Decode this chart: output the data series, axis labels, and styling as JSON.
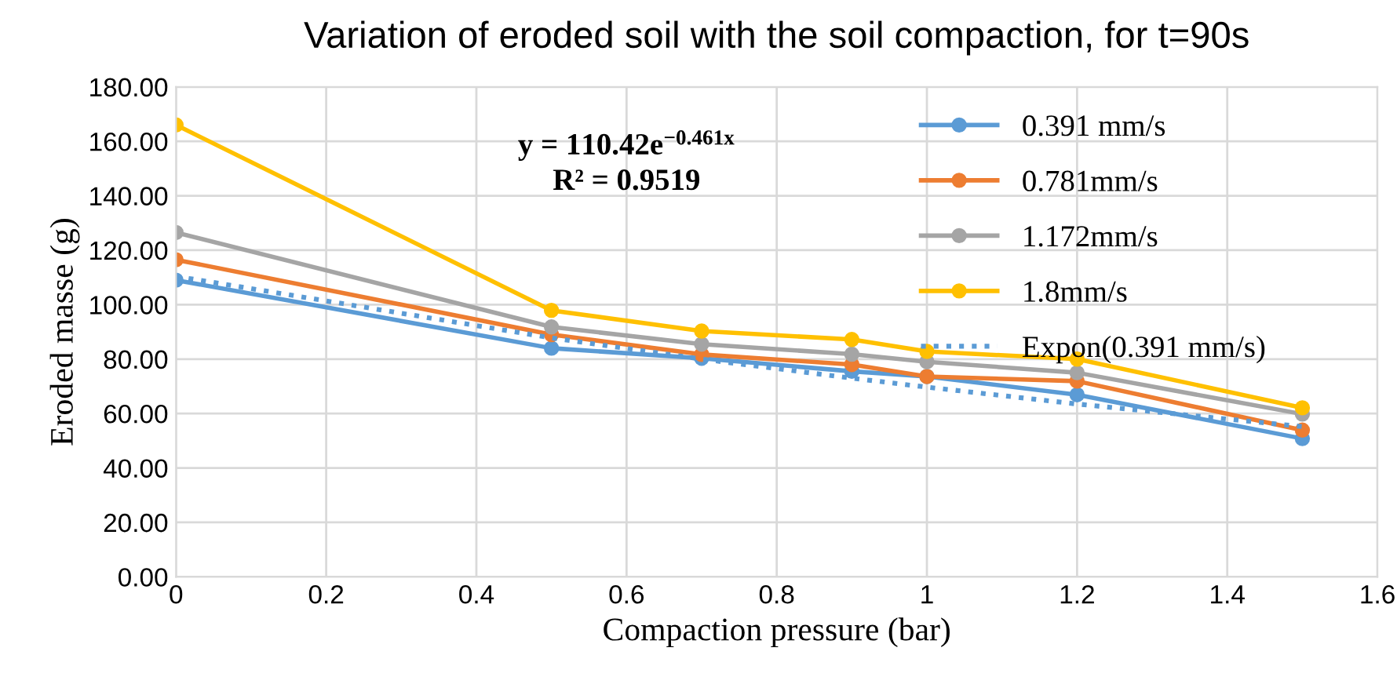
{
  "chart_data": {
    "type": "line",
    "title": "Variation of eroded soil with the soil compaction, for t=90s",
    "xlabel": "Compaction pressure (bar)",
    "ylabel": "Eroded masse (g)",
    "x": [
      0,
      0.5,
      0.7,
      0.9,
      1,
      1.2,
      1.5
    ],
    "series": [
      {
        "name": "0.391 mm/s",
        "color": "#5b9bd5",
        "values": [
          109,
          84,
          80.3,
          75.5,
          73.6,
          66.9,
          50.8
        ]
      },
      {
        "name": "0.781mm/s",
        "color": "#ed7d31",
        "values": [
          116.5,
          89,
          81.7,
          78,
          73.6,
          71.9,
          53.9
        ]
      },
      {
        "name": "1.172mm/s",
        "color": "#a5a5a5",
        "values": [
          126.5,
          91.8,
          85.5,
          81.8,
          79,
          75,
          59.8
        ]
      },
      {
        "name": "1.8mm/s",
        "color": "#ffc000",
        "values": [
          166,
          97.9,
          90.3,
          87.2,
          82.8,
          80,
          62.1
        ]
      },
      {
        "name": "Expon(0.391 mm/s)",
        "color": "#5b9bd5",
        "marker": "none",
        "line_style": "dotted",
        "values": [
          110.4,
          87.8,
          80.0,
          73.0,
          69.7,
          63.5,
          55.2
        ]
      }
    ],
    "annotations": [
      "y = 110.42e$^{−0.461x}$",
      "R² = 0.9519"
    ],
    "xlim": [
      0,
      1.6
    ],
    "xticks": [
      0,
      0.2,
      0.4,
      0.6,
      0.8,
      1,
      1.2,
      1.4,
      1.6
    ],
    "ylim": [
      0,
      180
    ],
    "yticks": [
      {
        "value": 0,
        "label": "0.00"
      },
      {
        "value": 20,
        "label": "20.00"
      },
      {
        "value": 40,
        "label": "40.00"
      },
      {
        "value": 60,
        "label": "60.00"
      },
      {
        "value": 80,
        "label": "80.00"
      },
      {
        "value": 100,
        "label": "100.00"
      },
      {
        "value": 120,
        "label": "120.00"
      },
      {
        "value": 140,
        "label": "140.00"
      },
      {
        "value": 160,
        "label": "160.00"
      },
      {
        "value": 180,
        "label": "180.00"
      }
    ],
    "grid": true,
    "legend": "top right",
    "marker": "circle",
    "line_style": "solid"
  }
}
